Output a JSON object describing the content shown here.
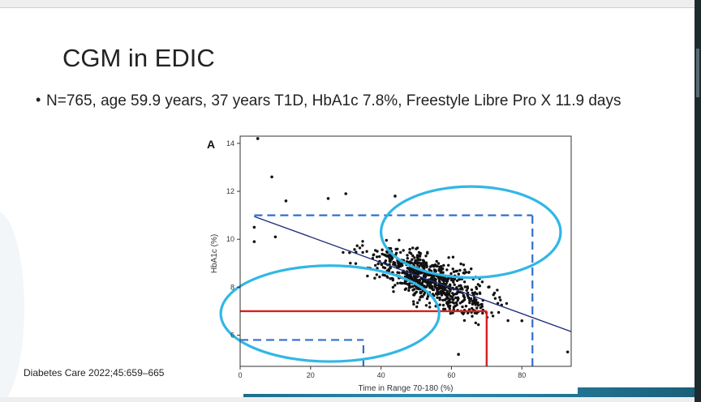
{
  "slide": {
    "title": "CGM in EDIC",
    "bullet": "N=765, age 59.9 years, 37 years T1D, HbA1c 7.8%, Freestyle Libre Pro X 11.9 days",
    "citation": "Diabetes Care 2022;45:659–665"
  },
  "colors": {
    "points": "#111111",
    "regression_line": "#1f2f7a",
    "dashed_guides": "#2f6fd0",
    "red_guides": "#d81f1f",
    "highlight_ellipses": "#31b7e6",
    "bottom_bar": "#1e6e8c"
  },
  "chart_data": {
    "type": "scatter",
    "panel_label": "A",
    "xlabel": "Time in Range 70-180 (%)",
    "ylabel": "HbA1c (%)",
    "xlim": [
      0,
      94
    ],
    "ylim": [
      4.7,
      14.3
    ],
    "x_ticks": [
      0,
      20,
      40,
      60,
      80
    ],
    "y_ticks": [
      6,
      8,
      10,
      12,
      14
    ],
    "grid": false,
    "n_points_approx": 765,
    "regression_line": {
      "x": [
        4,
        94
      ],
      "y": [
        10.95,
        6.15
      ]
    },
    "representative_points": [
      {
        "x": 5,
        "y": 14.2
      },
      {
        "x": 9,
        "y": 12.6
      },
      {
        "x": 13,
        "y": 11.6
      },
      {
        "x": 4,
        "y": 10.5
      },
      {
        "x": 4,
        "y": 9.9
      },
      {
        "x": 10,
        "y": 10.1
      },
      {
        "x": 25,
        "y": 11.7
      },
      {
        "x": 30,
        "y": 11.9
      },
      {
        "x": 44,
        "y": 11.8
      },
      {
        "x": 50,
        "y": 9.6
      },
      {
        "x": 57,
        "y": 8.6
      },
      {
        "x": 66,
        "y": 7.3
      },
      {
        "x": 80,
        "y": 6.6
      },
      {
        "x": 93,
        "y": 5.3
      },
      {
        "x": 62,
        "y": 5.2
      }
    ],
    "dashed_guides": [
      {
        "x": [
          4,
          83
        ],
        "y": [
          11,
          11
        ]
      },
      {
        "x": [
          83,
          83
        ],
        "y": [
          4.7,
          11
        ]
      },
      {
        "x": [
          0,
          35
        ],
        "y": [
          5.8,
          5.8
        ]
      },
      {
        "x": [
          35,
          35
        ],
        "y": [
          4.7,
          5.8
        ]
      }
    ],
    "red_guides": [
      {
        "x": [
          0,
          70
        ],
        "y": [
          7,
          7
        ]
      },
      {
        "x": [
          70,
          70
        ],
        "y": [
          4.7,
          7
        ]
      }
    ],
    "highlight_ellipses": [
      {
        "label": "upper-right",
        "cx": 65.5,
        "cy": 10.3,
        "rx": 25.5,
        "ry": 1.9
      },
      {
        "label": "lower-left",
        "cx": 25.5,
        "cy": 6.9,
        "rx": 31,
        "ry": 2.0
      }
    ]
  }
}
